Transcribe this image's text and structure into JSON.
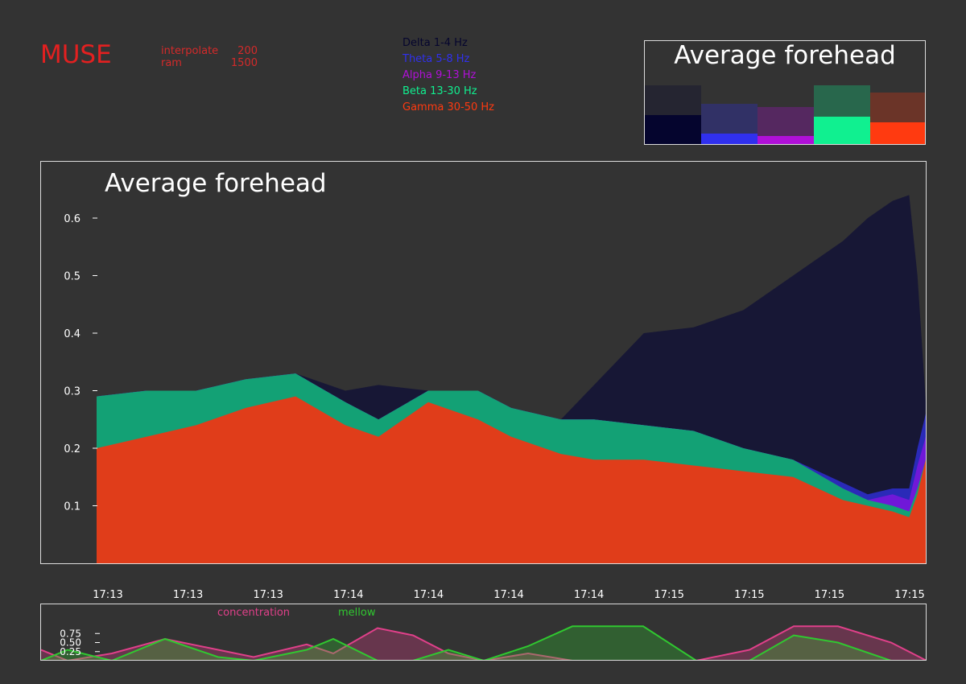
{
  "app": {
    "logo": "MUSE",
    "stats": [
      {
        "label": "interpolate",
        "value": "200"
      },
      {
        "label": "ram",
        "value": "1500"
      }
    ]
  },
  "legend": [
    {
      "label": "Delta 1-4 Hz",
      "color": "#05052e"
    },
    {
      "label": "Theta 5-8 Hz",
      "color": "#3030ee"
    },
    {
      "label": "Alpha 9-13 Hz",
      "color": "#b010d8"
    },
    {
      "label": "Beta 13-30 Hz",
      "color": "#10f090"
    },
    {
      "label": "Gamma 30-50 Hz",
      "color": "#ff3a10"
    }
  ],
  "chart_data": [
    {
      "type": "bar",
      "title": "Average forehead",
      "categories": [
        "Delta",
        "Theta",
        "Alpha",
        "Beta",
        "Gamma"
      ],
      "values": [
        0.38,
        0.15,
        0.12,
        0.36,
        0.29
      ],
      "max_values": [
        0.75,
        0.52,
        0.48,
        0.75,
        0.66
      ],
      "colors": [
        "#05052e",
        "#3030ee",
        "#b010d8",
        "#10f090",
        "#ff3a10"
      ]
    },
    {
      "type": "area",
      "title": "Average forehead",
      "ylim": [
        0,
        0.68
      ],
      "yticks": [
        0.1,
        0.2,
        0.3,
        0.4,
        0.5,
        0.6
      ],
      "xlabels": [
        "17:13",
        "17:13",
        "17:13",
        "17:14",
        "17:14",
        "17:14",
        "17:14",
        "17:15",
        "17:15",
        "17:15",
        "17:15"
      ],
      "x": [
        0,
        0.06,
        0.12,
        0.18,
        0.24,
        0.3,
        0.34,
        0.4,
        0.46,
        0.5,
        0.56,
        0.6,
        0.66,
        0.72,
        0.78,
        0.84,
        0.9,
        0.93,
        0.96,
        0.98,
        0.99,
        1.0
      ],
      "series": [
        {
          "name": "Gamma 30-50 Hz",
          "color": "#e03d1a",
          "values": [
            0.2,
            0.22,
            0.24,
            0.27,
            0.29,
            0.24,
            0.22,
            0.28,
            0.25,
            0.22,
            0.19,
            0.18,
            0.18,
            0.17,
            0.16,
            0.15,
            0.11,
            0.1,
            0.09,
            0.08,
            0.12,
            0.18
          ]
        },
        {
          "name": "Beta 13-30 Hz",
          "color": "#13a175",
          "values": [
            0.09,
            0.08,
            0.06,
            0.05,
            0.04,
            0.04,
            0.03,
            0.02,
            0.05,
            0.05,
            0.06,
            0.07,
            0.06,
            0.06,
            0.04,
            0.03,
            0.02,
            0.01,
            0.01,
            0.01,
            0.01,
            0.0
          ]
        },
        {
          "name": "Alpha 9-13 Hz",
          "color": "#7018d8",
          "values": [
            0.0,
            0.0,
            0.0,
            0.0,
            0.0,
            0.0,
            0.0,
            0.0,
            0.0,
            0.0,
            0.0,
            0.0,
            0.0,
            0.0,
            0.0,
            0.0,
            0.0,
            0.0,
            0.02,
            0.02,
            0.04,
            0.04
          ]
        },
        {
          "name": "Theta 5-8 Hz",
          "color": "#2a2ab8",
          "values": [
            0.0,
            0.0,
            0.0,
            0.0,
            0.0,
            0.0,
            0.0,
            0.0,
            0.0,
            0.0,
            0.0,
            0.0,
            0.0,
            0.0,
            0.0,
            0.0,
            0.01,
            0.01,
            0.01,
            0.02,
            0.03,
            0.04
          ]
        },
        {
          "name": "Delta 1-4 Hz",
          "color": "#171735",
          "values": [
            0.0,
            0.0,
            0.0,
            0.0,
            0.0,
            0.02,
            0.06,
            0.0,
            0.0,
            0.0,
            0.0,
            0.06,
            0.16,
            0.18,
            0.24,
            0.32,
            0.42,
            0.48,
            0.5,
            0.51,
            0.3,
            0.02
          ]
        }
      ]
    },
    {
      "type": "area",
      "yticks": [
        0.25,
        0.5,
        0.75
      ],
      "ytick_labels": [
        "0.25",
        "0.50",
        "0.75"
      ],
      "ylim": [
        0,
        1.0
      ],
      "x": [
        0,
        0.03,
        0.08,
        0.14,
        0.2,
        0.24,
        0.3,
        0.33,
        0.38,
        0.42,
        0.46,
        0.5,
        0.55,
        0.6,
        0.63,
        0.68,
        0.74,
        0.8,
        0.85,
        0.9,
        0.96,
        1.0
      ],
      "series": [
        {
          "name": "concentration",
          "color": "#e0408a",
          "values": [
            0.3,
            0.0,
            0.2,
            0.6,
            0.3,
            0.1,
            0.45,
            0.2,
            0.9,
            0.7,
            0.2,
            0.0,
            0.2,
            0.0,
            0.0,
            0.0,
            0.0,
            0.3,
            0.95,
            0.95,
            0.5,
            0.0
          ]
        },
        {
          "name": "mellow",
          "color": "#30c830",
          "values": [
            0.0,
            0.3,
            0.0,
            0.6,
            0.1,
            0.0,
            0.3,
            0.6,
            0.0,
            0.0,
            0.3,
            0.0,
            0.4,
            0.95,
            0.95,
            0.95,
            0.0,
            0.0,
            0.7,
            0.5,
            0.0,
            0.0
          ]
        }
      ]
    }
  ]
}
